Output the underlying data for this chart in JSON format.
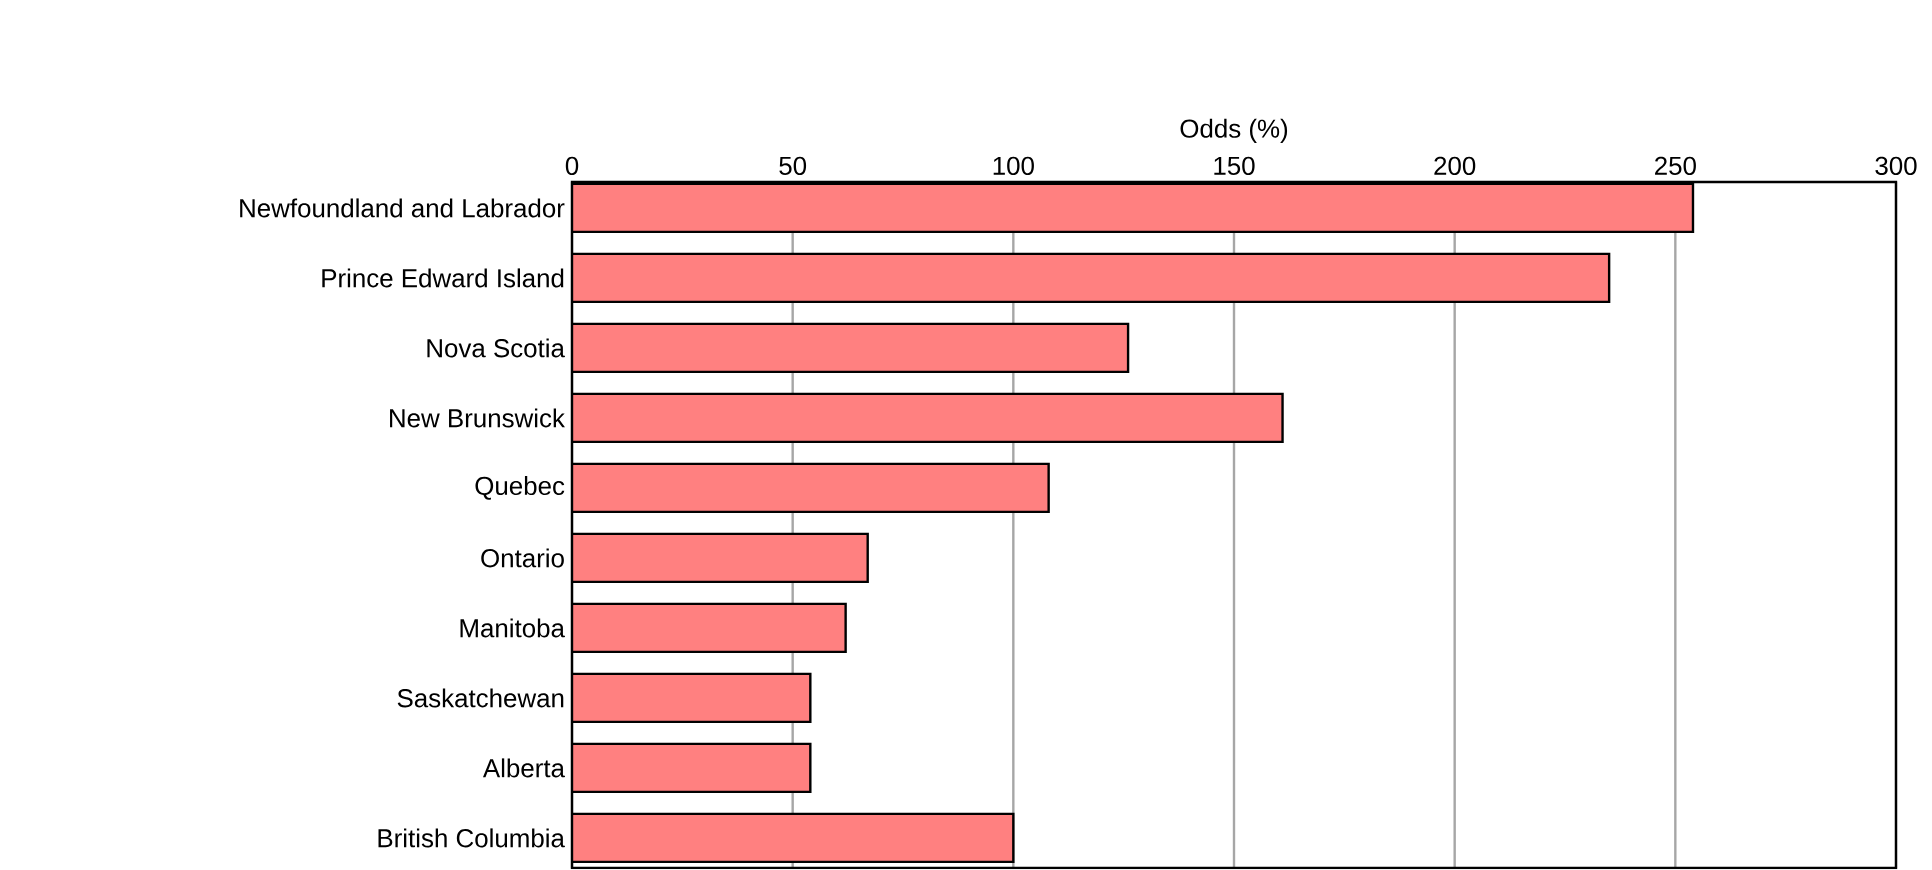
{
  "chart_data": {
    "type": "bar",
    "orientation": "horizontal",
    "xlabel": "Odds (%)",
    "categories": [
      "Newfoundland and Labrador",
      "Prince Edward Island",
      "Nova Scotia",
      "New Brunswick",
      "Quebec",
      "Ontario",
      "Manitoba",
      "Saskatchewan",
      "Alberta",
      "British Columbia"
    ],
    "values": [
      254,
      235,
      126,
      161,
      108,
      67,
      62,
      54,
      54,
      100
    ],
    "color": "#ff8080",
    "xlim": [
      0,
      300
    ],
    "xticks": [
      0,
      50,
      100,
      150,
      200,
      250,
      300
    ],
    "grid": "x"
  }
}
